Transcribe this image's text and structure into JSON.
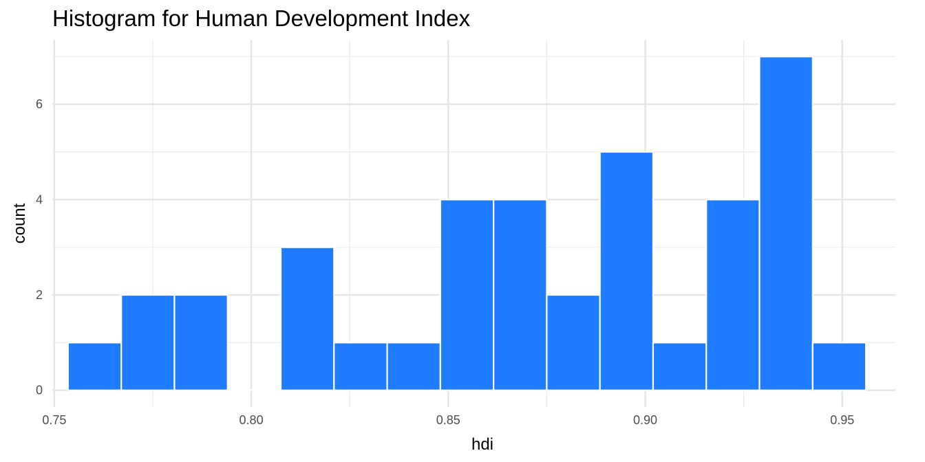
{
  "chart_data": {
    "type": "bar",
    "title": "Histogram for Human Development Index",
    "xlabel": "hdi",
    "ylabel": "count",
    "xlim": [
      0.7495,
      0.9635
    ],
    "ylim": [
      -0.35,
      7.35
    ],
    "x_ticks": [
      0.75,
      0.8,
      0.85,
      0.9,
      0.95
    ],
    "x_tick_labels": [
      "0.75",
      "0.80",
      "0.85",
      "0.90",
      "0.95"
    ],
    "y_ticks": [
      0,
      2,
      4,
      6
    ],
    "y_tick_labels": [
      "0",
      "2",
      "4",
      "6"
    ],
    "grid": true,
    "bar_color": "#1F7BFF",
    "bar_outline": "#ffffff",
    "bins": [
      {
        "start": 0.7535,
        "end": 0.767,
        "count": 1
      },
      {
        "start": 0.767,
        "end": 0.7805,
        "count": 2
      },
      {
        "start": 0.7805,
        "end": 0.794,
        "count": 2
      },
      {
        "start": 0.794,
        "end": 0.8075,
        "count": 0
      },
      {
        "start": 0.8075,
        "end": 0.821,
        "count": 3
      },
      {
        "start": 0.821,
        "end": 0.8345,
        "count": 1
      },
      {
        "start": 0.8345,
        "end": 0.848,
        "count": 1
      },
      {
        "start": 0.848,
        "end": 0.8615,
        "count": 4
      },
      {
        "start": 0.8615,
        "end": 0.875,
        "count": 4
      },
      {
        "start": 0.875,
        "end": 0.8885,
        "count": 2
      },
      {
        "start": 0.8885,
        "end": 0.902,
        "count": 5
      },
      {
        "start": 0.902,
        "end": 0.9155,
        "count": 1
      },
      {
        "start": 0.9155,
        "end": 0.929,
        "count": 4
      },
      {
        "start": 0.929,
        "end": 0.9425,
        "count": 7
      },
      {
        "start": 0.9425,
        "end": 0.956,
        "count": 1
      }
    ]
  }
}
